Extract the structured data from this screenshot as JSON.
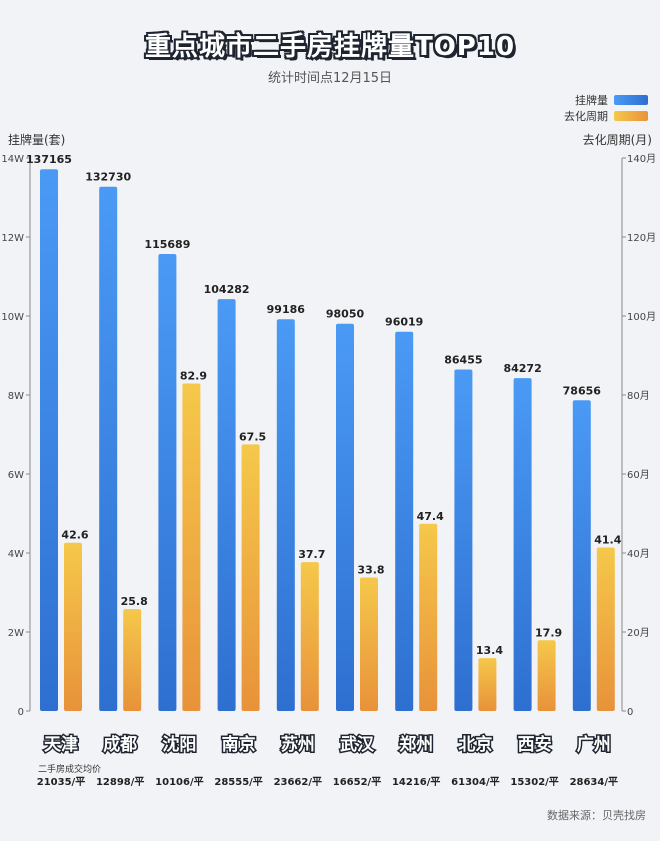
{
  "title": "重点城市二手房挂牌量TOP10",
  "subtitle": "统计时间点12月15日",
  "source": "数据来源：贝壳找房",
  "price_caption": "二手房成交均价",
  "colors": {
    "listings_top": "#4a9af5",
    "listings_bottom": "#2e6fd0",
    "cycle_top": "#f5c84a",
    "cycle_bottom": "#e8923a"
  },
  "chart_data": {
    "type": "bar",
    "title": "重点城市二手房挂牌量TOP10",
    "categories": [
      "天津",
      "成都",
      "沈阳",
      "南京",
      "苏州",
      "武汉",
      "郑州",
      "北京",
      "西安",
      "广州"
    ],
    "series": [
      {
        "name": "挂牌量",
        "axis": "left",
        "values": [
          137165,
          132730,
          115689,
          104282,
          99186,
          98050,
          96019,
          86455,
          84272,
          78656
        ]
      },
      {
        "name": "去化周期",
        "axis": "right",
        "values": [
          42.6,
          25.8,
          82.9,
          67.5,
          37.7,
          33.8,
          47.4,
          13.4,
          17.9,
          41.4
        ]
      }
    ],
    "avg_prices": [
      "21035/平",
      "12898/平",
      "10106/平",
      "28555/平",
      "23662/平",
      "16652/平",
      "14216/平",
      "61304/平",
      "15302/平",
      "28634/平"
    ],
    "ylabel": "挂牌量(套)",
    "ylabel_right": "去化周期(月)",
    "ylim": [
      0,
      140000
    ],
    "ylim_right": [
      0,
      140
    ],
    "yticks": [
      "0",
      "2W",
      "4W",
      "6W",
      "8W",
      "10W",
      "12W",
      "14W"
    ],
    "yticks_right": [
      "0",
      "20月",
      "40月",
      "60月",
      "80月",
      "100月",
      "120月",
      "140月"
    ],
    "legend_position": "top-right",
    "grid": false
  }
}
